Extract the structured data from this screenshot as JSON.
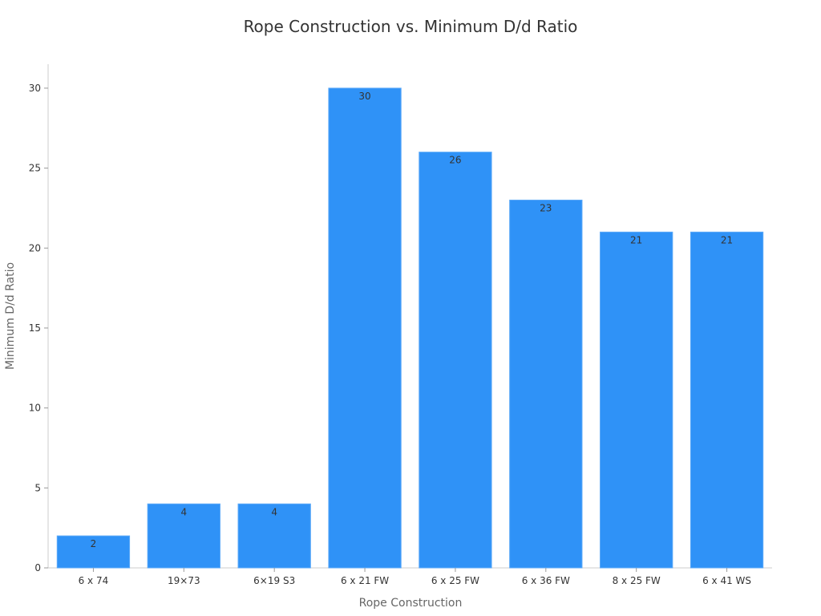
{
  "chart_data": {
    "type": "bar",
    "title": "Rope Construction vs. Minimum D/d Ratio",
    "xlabel": "Rope Construction",
    "ylabel": "Minimum D/d Ratio",
    "categories": [
      "6 x 74",
      "19×73",
      "6×19 S3",
      "6 x 21 FW",
      "6 x 25 FW",
      "6 x 36 FW",
      "8 x 25 FW",
      "6 x 41 WS"
    ],
    "values": [
      2,
      4,
      4,
      30,
      26,
      23,
      21,
      21
    ],
    "ylim": [
      0,
      31.5
    ],
    "yticks": [
      0,
      5,
      10,
      15,
      20,
      25,
      30
    ],
    "bar_color": "#2f92f7",
    "grid": false,
    "legend": "none"
  }
}
